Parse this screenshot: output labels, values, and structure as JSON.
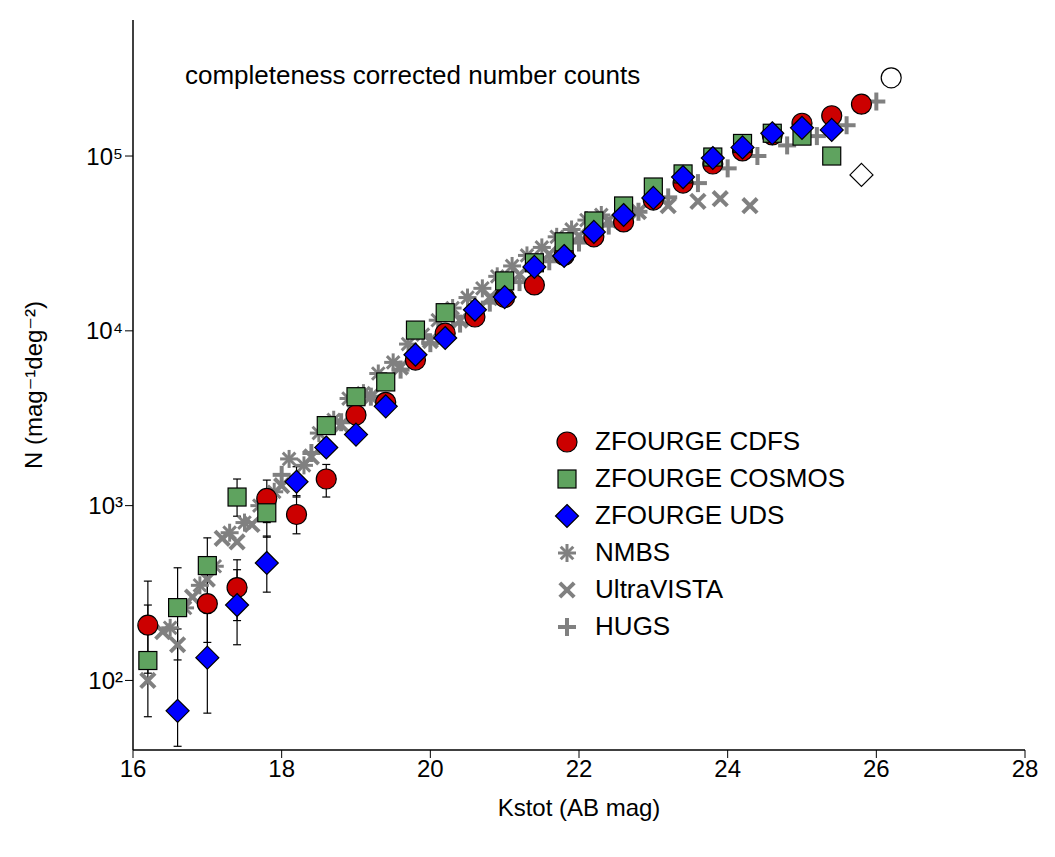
{
  "chart_data": {
    "type": "scatter",
    "title": "completeness corrected number counts",
    "x_label": "Kstot (AB mag)",
    "y_label": "N (mag⁻¹deg⁻²)",
    "log": "y",
    "legend": "lower right",
    "grid": false,
    "xlim": [
      16,
      28
    ],
    "xticks": [
      16,
      18,
      20,
      22,
      24,
      26,
      28
    ],
    "ylim": [
      40,
      600000
    ],
    "yticks": [
      {
        "value": 100,
        "label": "10²"
      },
      {
        "value": 1000,
        "label": "10³"
      },
      {
        "value": 10000,
        "label": "10⁴"
      },
      {
        "value": 100000,
        "label": "10⁵"
      }
    ],
    "series": [
      {
        "name": "ZFOURGE CDFS",
        "color": "#cc0000",
        "marker": "circle",
        "x": [
          16.2,
          17.0,
          17.4,
          17.8,
          18.2,
          18.6,
          19.0,
          19.4,
          19.8,
          20.2,
          20.6,
          21.0,
          21.4,
          21.8,
          22.2,
          22.6,
          23.0,
          23.4,
          23.8,
          24.2,
          24.6,
          25.0,
          25.4,
          25.8
        ],
        "values": [
          207,
          275,
          340,
          1100,
          890,
          1420,
          3300,
          3900,
          6800,
          9700,
          12000,
          15500,
          18300,
          27000,
          34500,
          42000,
          56000,
          70000,
          90000,
          107000,
          132000,
          154000,
          170000,
          198000
        ],
        "errors": [
          [
            97,
            163
          ],
          [
            110,
            150
          ],
          [
            120,
            150
          ],
          [
            300,
            300
          ],
          [
            200,
            250
          ],
          [
            300,
            300
          ],
          null,
          null,
          null,
          null,
          null,
          null,
          null,
          null,
          null,
          null,
          null,
          null,
          null,
          null,
          null,
          null,
          null,
          null
        ]
      },
      {
        "name": "ZFOURGE COSMOS",
        "color": "#5fa35f",
        "marker": "square",
        "x": [
          16.2,
          16.6,
          17.0,
          17.4,
          17.8,
          18.6,
          19.0,
          19.4,
          19.8,
          20.2,
          21.0,
          21.4,
          21.8,
          22.2,
          22.6,
          23.0,
          23.4,
          23.8,
          24.2,
          24.6,
          25.0,
          25.4
        ],
        "values": [
          130,
          261,
          454,
          1120,
          910,
          2870,
          4200,
          5100,
          10100,
          12700,
          19300,
          24500,
          32300,
          42500,
          51800,
          66500,
          79000,
          98700,
          118000,
          135000,
          130000,
          100000
        ],
        "errors": [
          [
            68,
            140
          ],
          [
            130,
            180
          ],
          [
            150,
            200
          ],
          [
            250,
            300
          ],
          [
            250,
            300
          ],
          null,
          null,
          null,
          null,
          null,
          null,
          null,
          null,
          null,
          null,
          null,
          null,
          null,
          null,
          null,
          null,
          null
        ]
      },
      {
        "name": "ZFOURGE UDS",
        "color": "#0000ff",
        "marker": "diamond",
        "x": [
          16.6,
          17.0,
          17.4,
          17.8,
          18.2,
          18.6,
          19.0,
          19.4,
          19.8,
          20.2,
          20.6,
          21.0,
          21.4,
          21.8,
          22.2,
          22.6,
          23.0,
          23.4,
          23.8,
          24.2,
          24.6,
          25.0,
          25.4
        ],
        "values": [
          67,
          135,
          270,
          470,
          1370,
          2150,
          2550,
          3700,
          7300,
          9100,
          13200,
          15600,
          23200,
          26800,
          36800,
          46000,
          57600,
          75800,
          97400,
          112000,
          135000,
          145000,
          141000
        ],
        "errors": [
          [
            25,
            130
          ],
          [
            70,
            130
          ],
          [
            110,
            160
          ],
          [
            150,
            200
          ],
          [
            250,
            300
          ],
          null,
          null,
          null,
          null,
          null,
          null,
          null,
          null,
          null,
          null,
          null,
          null,
          null,
          null,
          null,
          null,
          null,
          null
        ]
      },
      {
        "name": "NMBS",
        "color": "#808080",
        "marker": "asterisk",
        "x": [
          16.5,
          16.7,
          16.9,
          17.1,
          17.3,
          17.5,
          17.7,
          17.9,
          18.1,
          18.3,
          18.5,
          18.7,
          18.9,
          19.1,
          19.3,
          19.5,
          19.7,
          19.9,
          20.1,
          20.3,
          20.5,
          20.7,
          20.9,
          21.1,
          21.3,
          21.5,
          21.7,
          21.9,
          22.1,
          22.3
        ],
        "values": [
          200,
          260,
          350,
          450,
          700,
          800,
          1000,
          1200,
          1850,
          1700,
          2600,
          3100,
          4100,
          4400,
          5700,
          6600,
          8400,
          9500,
          11500,
          13500,
          15500,
          17500,
          20500,
          23500,
          27000,
          30000,
          34500,
          38000,
          43000,
          46000
        ]
      },
      {
        "name": "UltraVISTA",
        "color": "#808080",
        "marker": "cross",
        "x": [
          16.2,
          16.4,
          16.6,
          16.8,
          17.0,
          17.2,
          17.4,
          17.6,
          17.8,
          18.0,
          18.4,
          18.8,
          19.2,
          19.6,
          20.0,
          20.4,
          20.8,
          21.2,
          21.6,
          22.0,
          22.4,
          22.8,
          23.2,
          23.6,
          23.9,
          24.3
        ],
        "values": [
          100,
          190,
          160,
          300,
          380,
          650,
          620,
          780,
          1050,
          1300,
          1900,
          2900,
          4200,
          6200,
          8800,
          11500,
          15500,
          21000,
          27500,
          35000,
          43000,
          48000,
          52000,
          55000,
          57000,
          52000
        ]
      },
      {
        "name": "HUGS",
        "color": "#808080",
        "marker": "plus",
        "x": [
          18.0,
          18.4,
          18.8,
          19.2,
          19.6,
          20.0,
          20.4,
          20.8,
          21.2,
          21.6,
          22.0,
          22.4,
          22.8,
          23.2,
          23.6,
          24.0,
          24.4,
          24.8,
          25.2,
          25.6,
          26.0
        ],
        "values": [
          1500,
          2000,
          3000,
          4200,
          6000,
          8500,
          11000,
          14500,
          19000,
          25000,
          32000,
          40000,
          48000,
          58000,
          70000,
          85000,
          100000,
          115000,
          130000,
          150000,
          205000
        ]
      },
      {
        "color": "#000000",
        "marker": "open circle",
        "x": [
          26.2
        ],
        "values": [
          280000
        ]
      },
      {
        "color": "#000000",
        "marker": "open diamond",
        "x": [
          25.8
        ],
        "values": [
          78000
        ]
      }
    ]
  }
}
